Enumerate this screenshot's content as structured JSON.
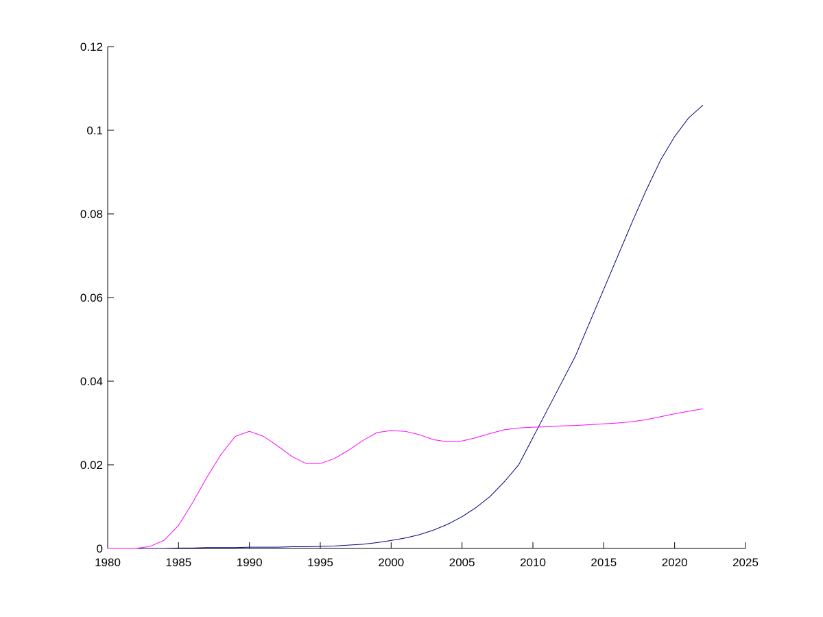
{
  "chart_data": {
    "type": "line",
    "x": [
      1980,
      1981,
      1982,
      1983,
      1984,
      1985,
      1986,
      1987,
      1988,
      1989,
      1990,
      1991,
      1992,
      1993,
      1994,
      1995,
      1996,
      1997,
      1998,
      1999,
      2000,
      2001,
      2002,
      2003,
      2004,
      2005,
      2006,
      2007,
      2008,
      2009,
      2010,
      2011,
      2012,
      2013,
      2014,
      2015,
      2016,
      2017,
      2018,
      2019,
      2020,
      2021,
      2022
    ],
    "series": [
      {
        "color": "#000080",
        "values": [
          0,
          0,
          0,
          0,
          0,
          0.0001,
          0.0001,
          0.0002,
          0.0002,
          0.0002,
          0.0003,
          0.0003,
          0.0003,
          0.0004,
          0.0004,
          0.0005,
          0.0006,
          0.0008,
          0.001,
          0.0014,
          0.0019,
          0.0025,
          0.0033,
          0.0044,
          0.0058,
          0.0076,
          0.0098,
          0.0125,
          0.016,
          0.02,
          0.0265,
          0.033,
          0.0395,
          0.046,
          0.054,
          0.062,
          0.07,
          0.078,
          0.0857,
          0.0928,
          0.0985,
          0.103,
          0.106
        ]
      },
      {
        "color": "#ff00ff",
        "values": [
          0,
          0,
          0,
          0.0005,
          0.002,
          0.0055,
          0.011,
          0.017,
          0.0225,
          0.0268,
          0.028,
          0.0268,
          0.0245,
          0.022,
          0.0203,
          0.0203,
          0.0215,
          0.0235,
          0.0258,
          0.0277,
          0.0282,
          0.028,
          0.0272,
          0.026,
          0.0255,
          0.0257,
          0.0265,
          0.0275,
          0.0284,
          0.0288,
          0.029,
          0.0291,
          0.0293,
          0.0294,
          0.0296,
          0.0298,
          0.03,
          0.0303,
          0.0308,
          0.0315,
          0.0322,
          0.0328,
          0.0334
        ]
      }
    ],
    "xlim": [
      1980,
      2025
    ],
    "xticks": [
      1980,
      1985,
      1990,
      1995,
      2000,
      2005,
      2010,
      2015,
      2020,
      2025
    ],
    "ylim": [
      0,
      0.12
    ],
    "yticks": [
      0,
      0.02,
      0.04,
      0.06,
      0.08,
      0.1,
      0.12
    ],
    "grid": false
  }
}
